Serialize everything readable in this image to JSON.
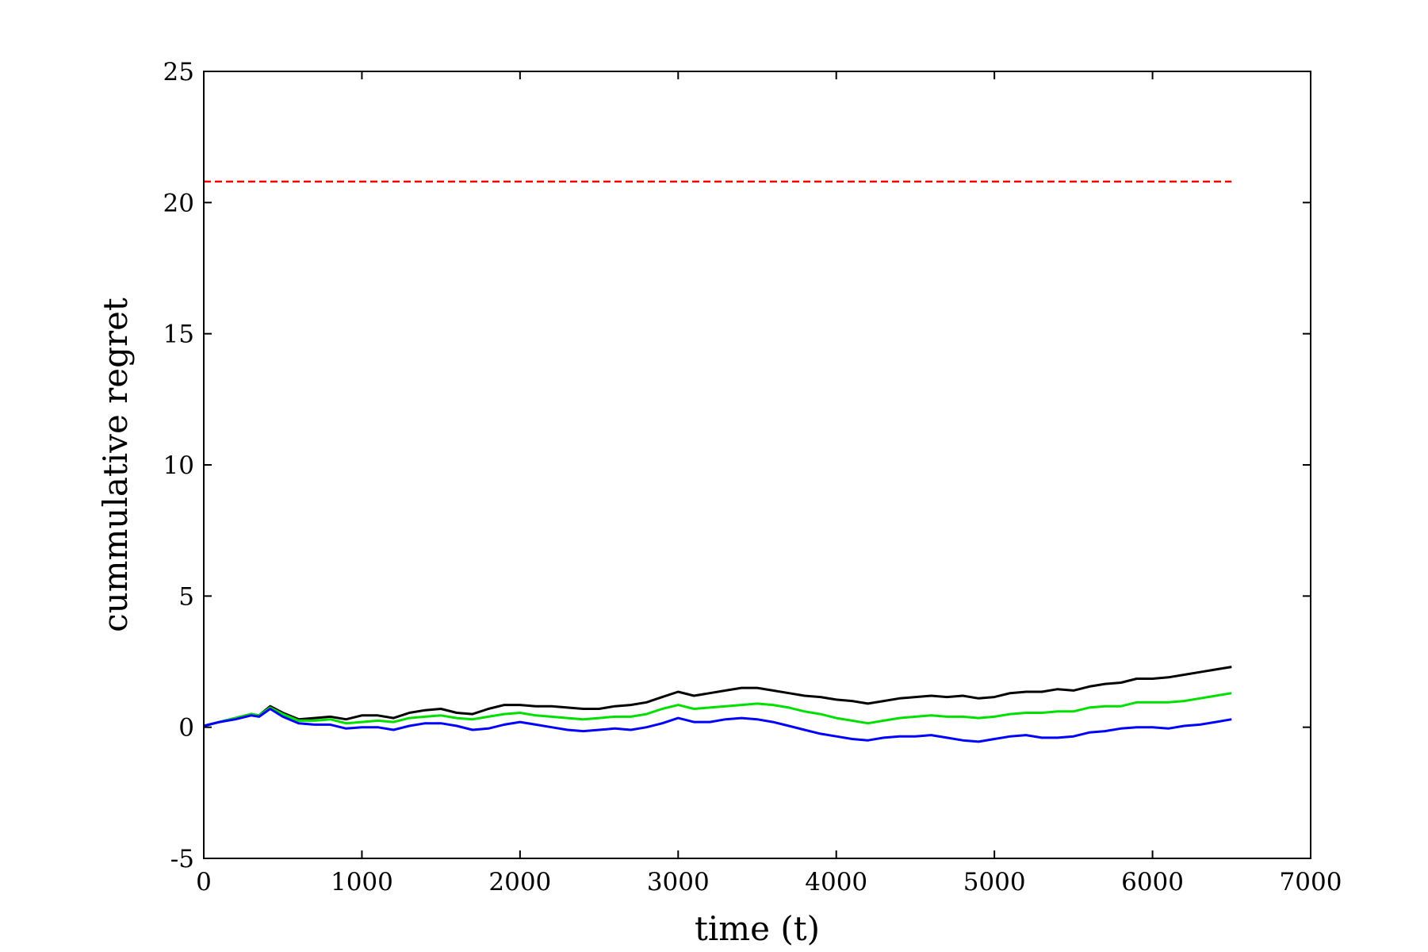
{
  "chart_data": {
    "type": "line",
    "title": "",
    "xlabel": "time (t)",
    "ylabel": "cummulative regret",
    "xlim": [
      0,
      7000
    ],
    "ylim": [
      -5,
      25
    ],
    "x_ticks": [
      0,
      1000,
      2000,
      3000,
      4000,
      5000,
      6000,
      7000
    ],
    "y_ticks": [
      -5,
      0,
      5,
      10,
      15,
      20,
      25
    ],
    "x_tick_labels": [
      "0",
      "1000",
      "2000",
      "3000",
      "4000",
      "5000",
      "6000",
      "7000"
    ],
    "y_tick_labels": [
      "-5",
      "0",
      "5",
      "10",
      "15",
      "20",
      "25"
    ],
    "grid": false,
    "legend": "none",
    "series": [
      {
        "color": "#ff0000",
        "style": "dashed",
        "x": [
          0,
          6500
        ],
        "y": [
          20.8,
          20.8
        ]
      },
      {
        "color": "#000000",
        "style": "solid",
        "x": [
          0,
          100,
          200,
          300,
          350,
          420,
          500,
          600,
          700,
          800,
          900,
          1000,
          1100,
          1200,
          1300,
          1400,
          1500,
          1600,
          1700,
          1800,
          1900,
          2000,
          2100,
          2200,
          2300,
          2400,
          2500,
          2600,
          2700,
          2800,
          2900,
          3000,
          3100,
          3200,
          3300,
          3400,
          3500,
          3600,
          3700,
          3800,
          3900,
          4000,
          4100,
          4200,
          4300,
          4400,
          4500,
          4600,
          4700,
          4800,
          4900,
          5000,
          5100,
          5200,
          5300,
          5400,
          5500,
          5600,
          5700,
          5800,
          5900,
          6000,
          6100,
          6200,
          6300,
          6400,
          6500
        ],
        "y": [
          0.05,
          0.2,
          0.35,
          0.5,
          0.45,
          0.8,
          0.55,
          0.3,
          0.35,
          0.4,
          0.3,
          0.45,
          0.45,
          0.35,
          0.55,
          0.65,
          0.7,
          0.55,
          0.5,
          0.7,
          0.85,
          0.85,
          0.8,
          0.8,
          0.75,
          0.7,
          0.7,
          0.8,
          0.85,
          0.95,
          1.15,
          1.35,
          1.2,
          1.3,
          1.4,
          1.5,
          1.5,
          1.4,
          1.3,
          1.2,
          1.15,
          1.05,
          1.0,
          0.9,
          1.0,
          1.1,
          1.15,
          1.2,
          1.15,
          1.2,
          1.1,
          1.15,
          1.3,
          1.35,
          1.35,
          1.45,
          1.4,
          1.55,
          1.65,
          1.7,
          1.85,
          1.85,
          1.9,
          2.0,
          2.1,
          2.2,
          2.3
        ]
      },
      {
        "color": "#00e000",
        "style": "solid",
        "x": [
          0,
          100,
          200,
          300,
          350,
          420,
          500,
          600,
          700,
          800,
          900,
          1000,
          1100,
          1200,
          1300,
          1400,
          1500,
          1600,
          1700,
          1800,
          1900,
          2000,
          2100,
          2200,
          2300,
          2400,
          2500,
          2600,
          2700,
          2800,
          2900,
          3000,
          3100,
          3200,
          3300,
          3400,
          3500,
          3600,
          3700,
          3800,
          3900,
          4000,
          4100,
          4200,
          4300,
          4400,
          4500,
          4600,
          4700,
          4800,
          4900,
          5000,
          5100,
          5200,
          5300,
          5400,
          5500,
          5600,
          5700,
          5800,
          5900,
          6000,
          6100,
          6200,
          6300,
          6400,
          6500
        ],
        "y": [
          0.05,
          0.2,
          0.35,
          0.5,
          0.45,
          0.75,
          0.5,
          0.25,
          0.25,
          0.3,
          0.15,
          0.2,
          0.25,
          0.2,
          0.35,
          0.4,
          0.45,
          0.35,
          0.3,
          0.4,
          0.5,
          0.55,
          0.45,
          0.4,
          0.35,
          0.3,
          0.35,
          0.4,
          0.4,
          0.5,
          0.7,
          0.85,
          0.7,
          0.75,
          0.8,
          0.85,
          0.9,
          0.85,
          0.75,
          0.6,
          0.5,
          0.35,
          0.25,
          0.15,
          0.25,
          0.35,
          0.4,
          0.45,
          0.4,
          0.4,
          0.35,
          0.4,
          0.5,
          0.55,
          0.55,
          0.6,
          0.6,
          0.75,
          0.8,
          0.8,
          0.95,
          0.95,
          0.95,
          1.0,
          1.1,
          1.2,
          1.3
        ]
      },
      {
        "color": "#0000ff",
        "style": "solid",
        "x": [
          0,
          100,
          200,
          300,
          350,
          420,
          500,
          600,
          700,
          800,
          900,
          1000,
          1100,
          1200,
          1300,
          1400,
          1500,
          1600,
          1700,
          1800,
          1900,
          2000,
          2100,
          2200,
          2300,
          2400,
          2500,
          2600,
          2700,
          2800,
          2900,
          3000,
          3100,
          3200,
          3300,
          3400,
          3500,
          3600,
          3700,
          3800,
          3900,
          4000,
          4100,
          4200,
          4300,
          4400,
          4500,
          4600,
          4700,
          4800,
          4900,
          5000,
          5100,
          5200,
          5300,
          5400,
          5500,
          5600,
          5700,
          5800,
          5900,
          6000,
          6100,
          6200,
          6300,
          6400,
          6500
        ],
        "y": [
          0.05,
          0.2,
          0.3,
          0.45,
          0.4,
          0.7,
          0.4,
          0.15,
          0.1,
          0.1,
          -0.05,
          0.0,
          0.0,
          -0.1,
          0.05,
          0.15,
          0.15,
          0.05,
          -0.1,
          -0.05,
          0.1,
          0.2,
          0.1,
          0.0,
          -0.1,
          -0.15,
          -0.1,
          -0.05,
          -0.1,
          0.0,
          0.15,
          0.35,
          0.2,
          0.2,
          0.3,
          0.35,
          0.3,
          0.2,
          0.05,
          -0.1,
          -0.25,
          -0.35,
          -0.45,
          -0.5,
          -0.4,
          -0.35,
          -0.35,
          -0.3,
          -0.4,
          -0.5,
          -0.55,
          -0.45,
          -0.35,
          -0.3,
          -0.4,
          -0.4,
          -0.35,
          -0.2,
          -0.15,
          -0.05,
          0.0,
          0.0,
          -0.05,
          0.05,
          0.1,
          0.2,
          0.3
        ]
      }
    ]
  }
}
